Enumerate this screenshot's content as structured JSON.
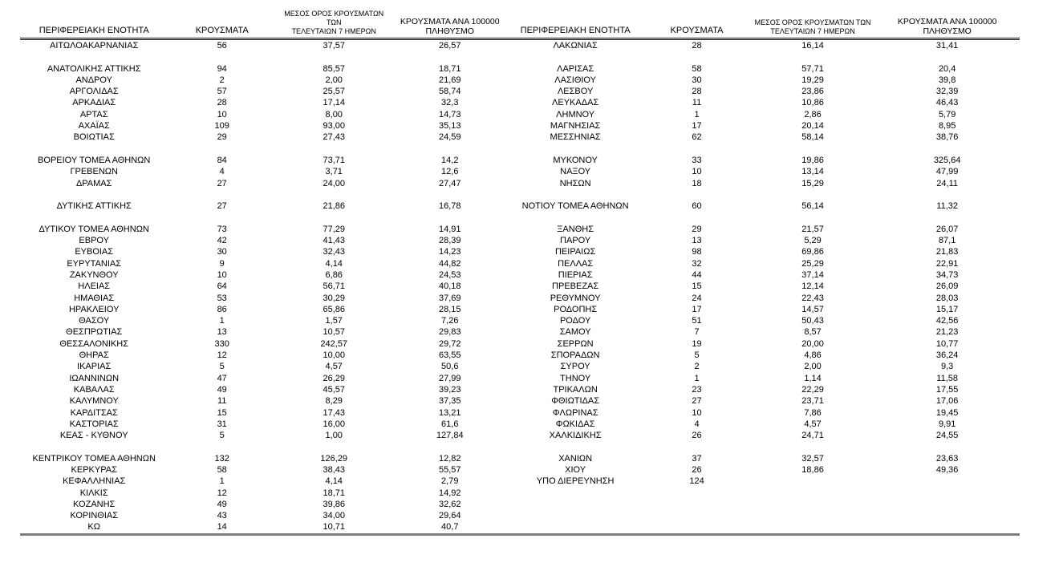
{
  "table": {
    "header": {
      "region": "ΠΕΡΙΦΕΡΕΙΑΚΗ ΕΝΟΤΗΤΑ",
      "cases": "ΚΡΟΥΣΜΑΤΑ",
      "avg7_line1": "ΜΕΣΟΣ ΟΡΟΣ ΚΡΟΥΣΜΑΤΩΝ ΤΩΝ",
      "avg7_line2": "ΤΕΛΕΥΤΑΙΩΝ 7 ΗΜΕΡΩΝ",
      "per100k_line1": "ΚΡΟΥΣΜΑΤΑ ΑΝΑ 100000",
      "per100k_line2": "ΠΛΗΘΥΣΜΟ"
    },
    "colors": {
      "text": "#000000",
      "header_rule": "#000000",
      "bottom_rule": "#808080",
      "background": "#ffffff"
    },
    "rows": [
      {
        "left": [
          "ΑΙΤΩΛΟΑΚΑΡΝΑΝΙΑΣ",
          "56",
          "37,57",
          "26,57"
        ],
        "right": [
          "ΛΑΚΩΝΙΑΣ",
          "28",
          "16,14",
          "31,41"
        ]
      },
      {
        "left": null,
        "right": null
      },
      {
        "left": [
          "ΑΝΑΤΟΛΙΚΗΣ ΑΤΤΙΚΗΣ",
          "94",
          "85,57",
          "18,71"
        ],
        "right": [
          "ΛΑΡΙΣΑΣ",
          "58",
          "57,71",
          "20,4"
        ]
      },
      {
        "left": [
          "ΑΝΔΡΟΥ",
          "2",
          "2,00",
          "21,69"
        ],
        "right": [
          "ΛΑΣΙΘΙΟΥ",
          "30",
          "19,29",
          "39,8"
        ]
      },
      {
        "left": [
          "ΑΡΓΟΛΙΔΑΣ",
          "57",
          "25,57",
          "58,74"
        ],
        "right": [
          "ΛΕΣΒΟΥ",
          "28",
          "23,86",
          "32,39"
        ]
      },
      {
        "left": [
          "ΑΡΚΑΔΙΑΣ",
          "28",
          "17,14",
          "32,3"
        ],
        "right": [
          "ΛΕΥΚΑΔΑΣ",
          "11",
          "10,86",
          "46,43"
        ]
      },
      {
        "left": [
          "ΑΡΤΑΣ",
          "10",
          "8,00",
          "14,73"
        ],
        "right": [
          "ΛΗΜΝΟΥ",
          "1",
          "2,86",
          "5,79"
        ]
      },
      {
        "left": [
          "ΑΧΑΪΑΣ",
          "109",
          "93,00",
          "35,13"
        ],
        "right": [
          "ΜΑΓΝΗΣΙΑΣ",
          "17",
          "20,14",
          "8,95"
        ]
      },
      {
        "left": [
          "ΒΟΙΩΤΙΑΣ",
          "29",
          "27,43",
          "24,59"
        ],
        "right": [
          "ΜΕΣΣΗΝΙΑΣ",
          "62",
          "58,14",
          "38,76"
        ]
      },
      {
        "left": null,
        "right": null
      },
      {
        "left": [
          "ΒΟΡΕΙΟΥ ΤΟΜΕΑ ΑΘΗΝΩΝ",
          "84",
          "73,71",
          "14,2"
        ],
        "right": [
          "ΜΥΚΟΝΟΥ",
          "33",
          "19,86",
          "325,64"
        ]
      },
      {
        "left": [
          "ΓΡΕΒΕΝΩΝ",
          "4",
          "3,71",
          "12,6"
        ],
        "right": [
          "ΝΑΞΟΥ",
          "10",
          "13,14",
          "47,99"
        ]
      },
      {
        "left": [
          "ΔΡΑΜΑΣ",
          "27",
          "24,00",
          "27,47"
        ],
        "right": [
          "ΝΗΣΩΝ",
          "18",
          "15,29",
          "24,11"
        ]
      },
      {
        "left": null,
        "right": null
      },
      {
        "left": [
          "ΔΥΤΙΚΗΣ ΑΤΤΙΚΗΣ",
          "27",
          "21,86",
          "16,78"
        ],
        "right": [
          "ΝΟΤΙΟΥ ΤΟΜΕΑ ΑΘΗΝΩΝ",
          "60",
          "56,14",
          "11,32"
        ]
      },
      {
        "left": null,
        "right": null
      },
      {
        "left": [
          "ΔΥΤΙΚΟΥ ΤΟΜΕΑ ΑΘΗΝΩΝ",
          "73",
          "77,29",
          "14,91"
        ],
        "right": [
          "ΞΑΝΘΗΣ",
          "29",
          "21,57",
          "26,07"
        ]
      },
      {
        "left": [
          "ΕΒΡΟΥ",
          "42",
          "41,43",
          "28,39"
        ],
        "right": [
          "ΠΑΡΟΥ",
          "13",
          "5,29",
          "87,1"
        ]
      },
      {
        "left": [
          "ΕΥΒΟΙΑΣ",
          "30",
          "32,43",
          "14,23"
        ],
        "right": [
          "ΠΕΙΡΑΙΩΣ",
          "98",
          "69,86",
          "21,83"
        ]
      },
      {
        "left": [
          "ΕΥΡΥΤΑΝΙΑΣ",
          "9",
          "4,14",
          "44,82"
        ],
        "right": [
          "ΠΕΛΛΑΣ",
          "32",
          "25,29",
          "22,91"
        ]
      },
      {
        "left": [
          "ΖΑΚΥΝΘΟΥ",
          "10",
          "6,86",
          "24,53"
        ],
        "right": [
          "ΠΙΕΡΙΑΣ",
          "44",
          "37,14",
          "34,73"
        ]
      },
      {
        "left": [
          "ΗΛΕΙΑΣ",
          "64",
          "56,71",
          "40,18"
        ],
        "right": [
          "ΠΡΕΒΕΖΑΣ",
          "15",
          "12,14",
          "26,09"
        ]
      },
      {
        "left": [
          "ΗΜΑΘΙΑΣ",
          "53",
          "30,29",
          "37,69"
        ],
        "right": [
          "ΡΕΘΥΜΝΟΥ",
          "24",
          "22,43",
          "28,03"
        ]
      },
      {
        "left": [
          "ΗΡΑΚΛΕΙΟΥ",
          "86",
          "65,86",
          "28,15"
        ],
        "right": [
          "ΡΟΔΟΠΗΣ",
          "17",
          "14,57",
          "15,17"
        ]
      },
      {
        "left": [
          "ΘΑΣΟΥ",
          "1",
          "1,57",
          "7,26"
        ],
        "right": [
          "ΡΟΔΟΥ",
          "51",
          "50,43",
          "42,56"
        ]
      },
      {
        "left": [
          "ΘΕΣΠΡΩΤΙΑΣ",
          "13",
          "10,57",
          "29,83"
        ],
        "right": [
          "ΣΑΜΟΥ",
          "7",
          "8,57",
          "21,23"
        ]
      },
      {
        "left": [
          "ΘΕΣΣΑΛΟΝΙΚΗΣ",
          "330",
          "242,57",
          "29,72"
        ],
        "right": [
          "ΣΕΡΡΩΝ",
          "19",
          "20,00",
          "10,77"
        ]
      },
      {
        "left": [
          "ΘΗΡΑΣ",
          "12",
          "10,00",
          "63,55"
        ],
        "right": [
          "ΣΠΟΡΑΔΩΝ",
          "5",
          "4,86",
          "36,24"
        ]
      },
      {
        "left": [
          "ΙΚΑΡΙΑΣ",
          "5",
          "4,57",
          "50,6"
        ],
        "right": [
          "ΣΥΡΟΥ",
          "2",
          "2,00",
          "9,3"
        ]
      },
      {
        "left": [
          "ΙΩΑΝΝΙΝΩΝ",
          "47",
          "26,29",
          "27,99"
        ],
        "right": [
          "ΤΗΝΟΥ",
          "1",
          "1,14",
          "11,58"
        ]
      },
      {
        "left": [
          "ΚΑΒΑΛΑΣ",
          "49",
          "45,57",
          "39,23"
        ],
        "right": [
          "ΤΡΙΚΑΛΩΝ",
          "23",
          "22,29",
          "17,55"
        ]
      },
      {
        "left": [
          "ΚΑΛΥΜΝΟΥ",
          "11",
          "8,29",
          "37,35"
        ],
        "right": [
          "ΦΘΙΩΤΙΔΑΣ",
          "27",
          "23,71",
          "17,06"
        ]
      },
      {
        "left": [
          "ΚΑΡΔΙΤΣΑΣ",
          "15",
          "17,43",
          "13,21"
        ],
        "right": [
          "ΦΛΩΡΙΝΑΣ",
          "10",
          "7,86",
          "19,45"
        ]
      },
      {
        "left": [
          "ΚΑΣΤΟΡΙΑΣ",
          "31",
          "16,00",
          "61,6"
        ],
        "right": [
          "ΦΩΚΙΔΑΣ",
          "4",
          "4,57",
          "9,91"
        ]
      },
      {
        "left": [
          "ΚΕΑΣ - ΚΥΘΝΟΥ",
          "5",
          "1,00",
          "127,84"
        ],
        "right": [
          "ΧΑΛΚΙΔΙΚΗΣ",
          "26",
          "24,71",
          "24,55"
        ]
      },
      {
        "left": null,
        "right": null
      },
      {
        "left": [
          "ΚΕΝΤΡΙΚΟΥ ΤΟΜΕΑ ΑΘΗΝΩΝ",
          "132",
          "126,29",
          "12,82"
        ],
        "right": [
          "ΧΑΝΙΩΝ",
          "37",
          "32,57",
          "23,63"
        ]
      },
      {
        "left": [
          "ΚΕΡΚΥΡΑΣ",
          "58",
          "38,43",
          "55,57"
        ],
        "right": [
          "ΧΙΟΥ",
          "26",
          "18,86",
          "49,36"
        ]
      },
      {
        "left": [
          "ΚΕΦΑΛΛΗΝΙΑΣ",
          "1",
          "4,14",
          "2,79"
        ],
        "right": [
          "ΥΠΟ ΔΙΕΡΕΥΝΗΣΗ",
          "124",
          "",
          ""
        ]
      },
      {
        "left": [
          "ΚΙΛΚΙΣ",
          "12",
          "18,71",
          "14,92"
        ],
        "right": null
      },
      {
        "left": [
          "ΚΟΖΑΝΗΣ",
          "49",
          "39,86",
          "32,62"
        ],
        "right": null
      },
      {
        "left": [
          "ΚΟΡΙΝΘΙΑΣ",
          "43",
          "34,00",
          "29,64"
        ],
        "right": null
      },
      {
        "left": [
          "ΚΩ",
          "14",
          "10,71",
          "40,7"
        ],
        "right": null
      }
    ]
  }
}
